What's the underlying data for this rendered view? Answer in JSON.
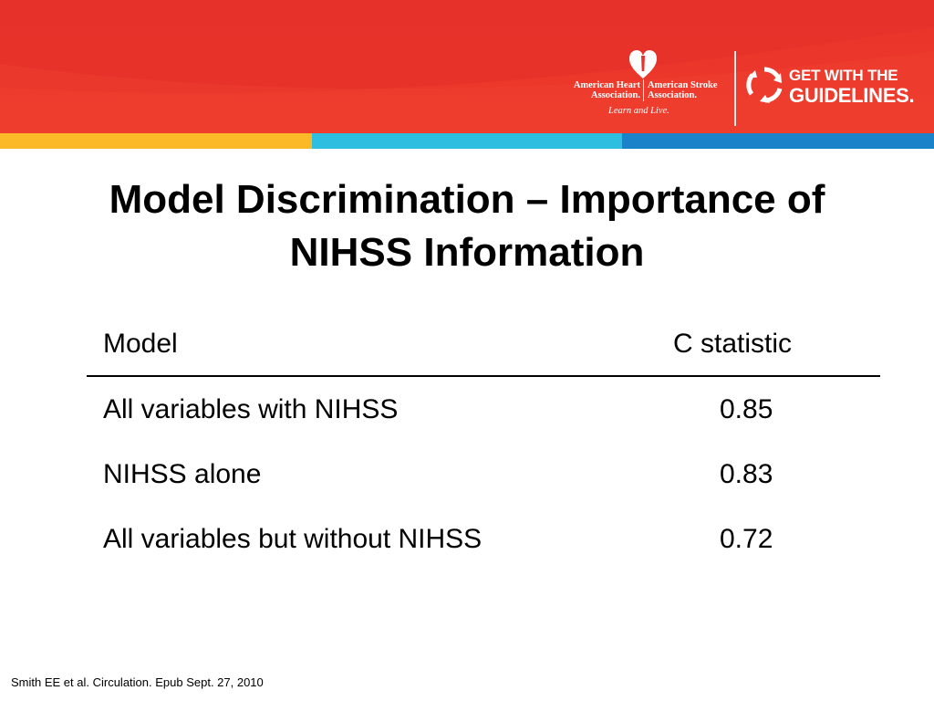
{
  "header": {
    "brand_colors": {
      "banner_red": "#ee3a2c",
      "stripe_yellow": "#fbb928",
      "stripe_cyan": "#2ebfe0",
      "stripe_blue": "#1a82c8"
    },
    "aha": {
      "left_line1": "American Heart",
      "left_line2": "Association.",
      "right_line1": "American Stroke",
      "right_line2": "Association.",
      "tagline": "Learn and Live.",
      "logo_icon": "heart-torch-logo-icon"
    },
    "gwtg": {
      "line1": "GET WITH THE",
      "line2": "GUIDELINES.",
      "logo_icon": "circular-arrows-logo-icon"
    }
  },
  "slide": {
    "title_line1": "Model Discrimination – Importance of",
    "title_line2": "NIHSS Information"
  },
  "table": {
    "columns": [
      "Model",
      "C statistic"
    ],
    "rows": [
      {
        "model": "All variables with NIHSS",
        "c_statistic": "0.85"
      },
      {
        "model": "NIHSS alone",
        "c_statistic": "0.83"
      },
      {
        "model": "All variables but without NIHSS",
        "c_statistic": "0.72"
      }
    ]
  },
  "footer": {
    "citation": "Smith EE et al. Circulation.  Epub Sept. 27, 2010"
  }
}
